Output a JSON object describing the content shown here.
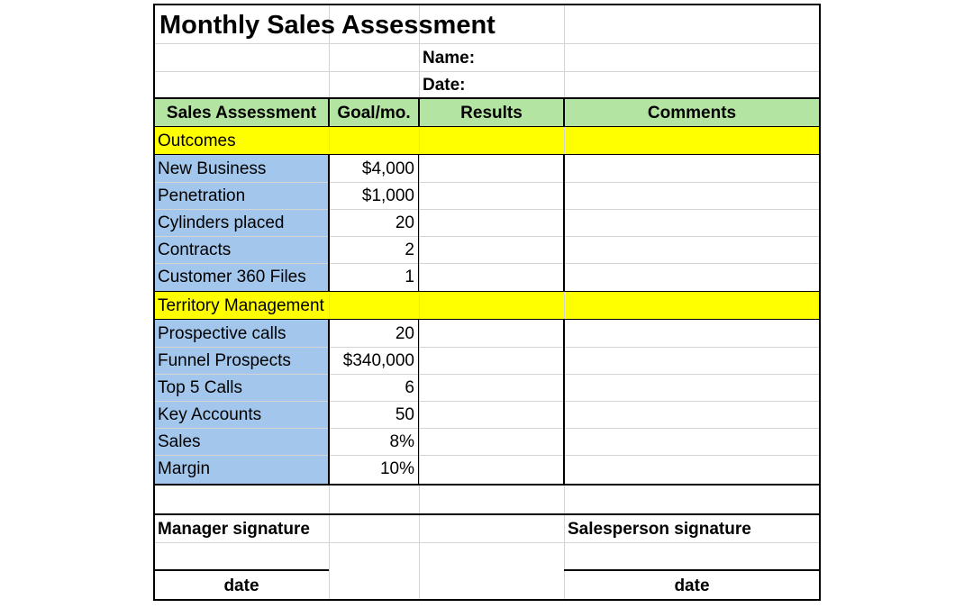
{
  "title": "Monthly Sales Assessment",
  "name_label": "Name:",
  "date_label": "Date:",
  "headers": {
    "assessment": "Sales Assessment",
    "goal": "Goal/mo.",
    "results": "Results",
    "comments": "Comments"
  },
  "sections": [
    {
      "title": "Outcomes",
      "rows": [
        {
          "label": "New Business",
          "goal": "$4,000"
        },
        {
          "label": "Penetration",
          "goal": "$1,000"
        },
        {
          "label": "Cylinders placed",
          "goal": "20"
        },
        {
          "label": "Contracts",
          "goal": "2"
        },
        {
          "label": "Customer 360 Files",
          "goal": "1"
        }
      ]
    },
    {
      "title": "Territory Management",
      "rows": [
        {
          "label": "Prospective calls",
          "goal": "20"
        },
        {
          "label": "Funnel Prospects",
          "goal": "$340,000"
        },
        {
          "label": "Top 5 Calls",
          "goal": "6"
        },
        {
          "label": "Key Accounts",
          "goal": "50"
        },
        {
          "label": "Sales",
          "goal": "8%"
        },
        {
          "label": "Margin",
          "goal": "10%"
        }
      ]
    }
  ],
  "signatures": {
    "manager": "Manager signature",
    "salesperson": "Salesperson signature",
    "manager_date": "date",
    "salesperson_date": "date"
  },
  "colors": {
    "header_fill": "#b4e4a1",
    "section_fill": "#ffff00",
    "label_fill": "#a3c7ec"
  }
}
